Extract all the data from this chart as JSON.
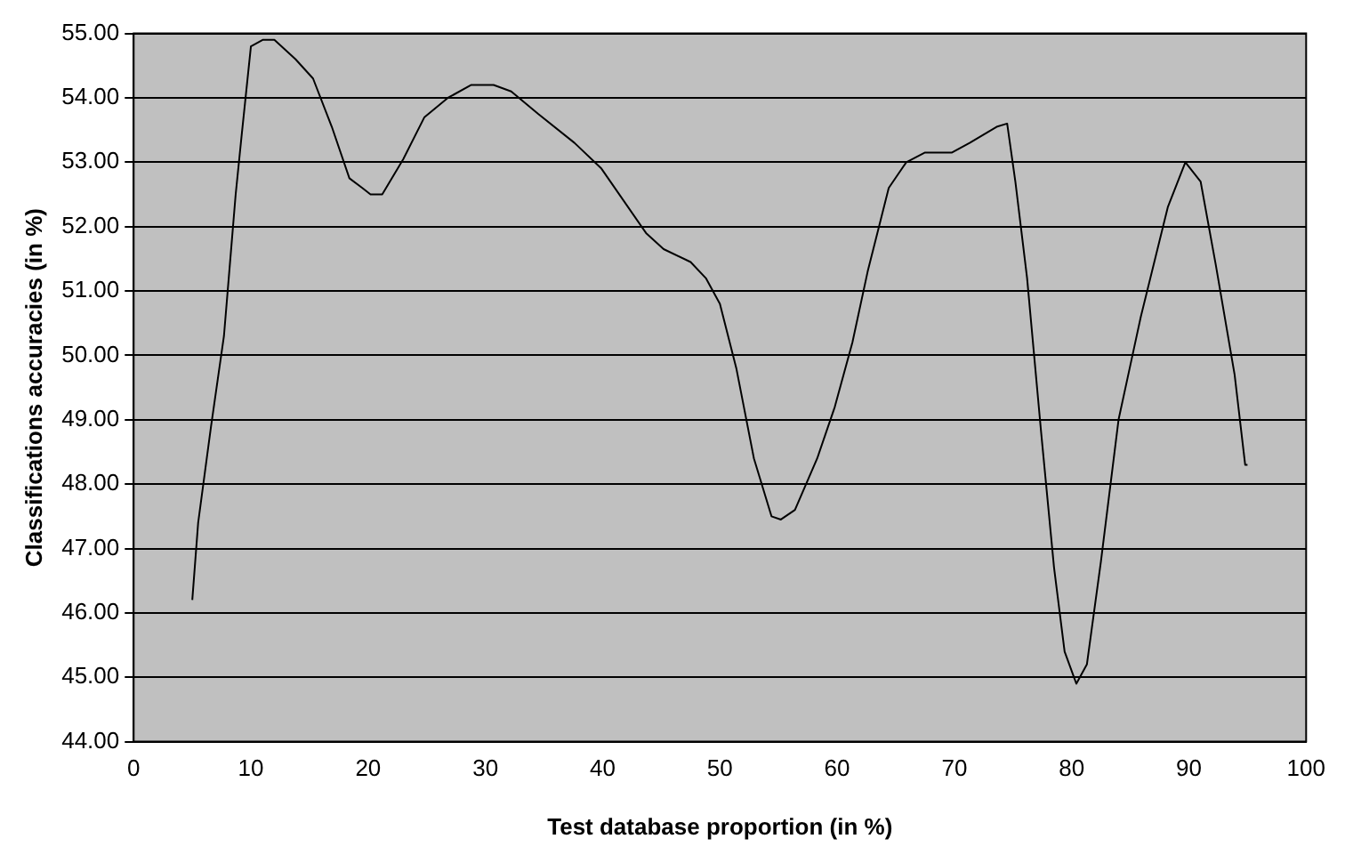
{
  "chart_data": {
    "type": "line",
    "xlabel": "Test database proportion (in %)",
    "ylabel": "Classifications accuracies (in %)",
    "xlim": [
      0,
      100
    ],
    "xticks": [
      0,
      10,
      20,
      30,
      40,
      50,
      60,
      70,
      80,
      90,
      100
    ],
    "ylim": [
      44,
      55
    ],
    "yticks": [
      {
        "value": 44,
        "label": "44.00"
      },
      {
        "value": 45,
        "label": "45.00"
      },
      {
        "value": 46,
        "label": "46.00"
      },
      {
        "value": 47,
        "label": "47.00"
      },
      {
        "value": 48,
        "label": "48.00"
      },
      {
        "value": 49,
        "label": "49.00"
      },
      {
        "value": 50,
        "label": "50.00"
      },
      {
        "value": 51,
        "label": "51.00"
      },
      {
        "value": 52,
        "label": "52.00"
      },
      {
        "value": 53,
        "label": "53.00"
      },
      {
        "value": 54,
        "label": "54.00"
      },
      {
        "value": 55,
        "label": "55.00"
      }
    ],
    "grid": "y",
    "legend": false,
    "marker": "none",
    "line_style": "solid",
    "series": [
      {
        "color": "#000000",
        "x": [
          5,
          5.5,
          6.6,
          7.7,
          8.7,
          9.2,
          10,
          11,
          12,
          13.8,
          15.3,
          16.9,
          18.4,
          19.5,
          20.2,
          21.2,
          23,
          24.8,
          26.8,
          28.8,
          30.7,
          32.2,
          34.5,
          37.6,
          39.9,
          43.7,
          45.2,
          47.5,
          48.8,
          50,
          51.4,
          52.9,
          54.4,
          55.2,
          56.4,
          58.3,
          59.8,
          61.3,
          62.6,
          64.4,
          65.9,
          67.5,
          69.8,
          71.3,
          73.6,
          74.5,
          75.2,
          76.2,
          77.4,
          78.5,
          79.4,
          80.4,
          81.3,
          82.5,
          84,
          85.9,
          88.2,
          89.7,
          91,
          92.3,
          93.9,
          94.8,
          95
        ],
        "values": [
          46.2,
          47.4,
          48.9,
          50.3,
          52.5,
          53.4,
          54.8,
          54.9,
          54.9,
          54.6,
          54.3,
          53.55,
          52.75,
          52.6,
          52.5,
          52.5,
          53.05,
          53.7,
          54,
          54.2,
          54.2,
          54.1,
          53.75,
          53.3,
          52.9,
          51.9,
          51.65,
          51.45,
          51.2,
          50.8,
          49.8,
          48.4,
          47.5,
          47.45,
          47.6,
          48.4,
          49.2,
          50.2,
          51.3,
          52.6,
          53,
          53.15,
          53.15,
          53.3,
          53.55,
          53.6,
          52.7,
          51.2,
          48.8,
          46.7,
          45.4,
          44.9,
          45.2,
          46.8,
          49,
          50.6,
          52.3,
          53,
          52.7,
          51.4,
          49.7,
          48.3,
          48.3
        ]
      }
    ]
  }
}
